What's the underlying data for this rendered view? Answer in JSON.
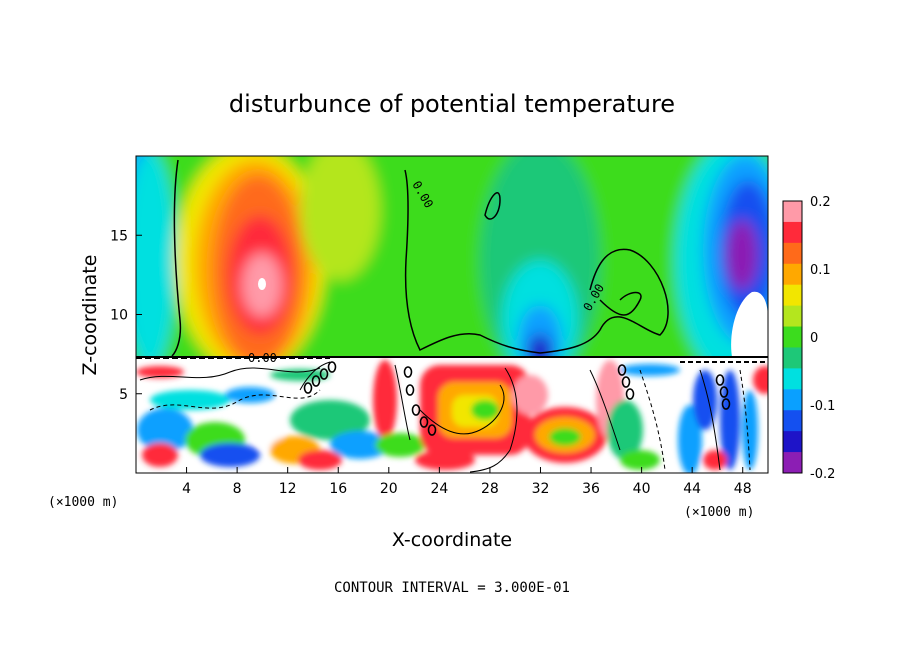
{
  "chart_data": {
    "type": "heatmap",
    "title": "disturbunce of potential temperature",
    "xlabel": "X-coordinate",
    "ylabel": "Z-coordinate",
    "x_unit": "(×1000 m)",
    "x_unit_right": "(×1000 m)",
    "xlim": [
      0,
      50
    ],
    "ylim": [
      0,
      20
    ],
    "x_ticks": [
      4,
      8,
      12,
      16,
      20,
      24,
      28,
      32,
      36,
      40,
      44,
      48
    ],
    "y_ticks": [
      5,
      10,
      15
    ],
    "colorbar": {
      "range": [
        -0.2,
        0.2
      ],
      "ticks": [
        "0.2",
        "0.1",
        "0",
        "-0.1",
        "-0.2"
      ],
      "colors": [
        "#ff9aa8",
        "#ff2a3a",
        "#ff6a1a",
        "#ffa800",
        "#f2e600",
        "#b4e61e",
        "#3cdc1e",
        "#1ec878",
        "#00e0e0",
        "#0aa0ff",
        "#1450f0",
        "#1e14c8",
        "#8c1eb4"
      ]
    },
    "contour_labels": [
      "0.00",
      "0.00",
      "0.00",
      "0.00",
      "0.00"
    ],
    "footer": "CONTOUR INTERVAL = 3.000E-01",
    "blobs_upper": [
      {
        "x": 10,
        "z": 13,
        "value": 0.2
      },
      {
        "x": 10,
        "z": 11,
        "value": 0.15
      },
      {
        "x": 32,
        "z": 8.5,
        "value": -0.2
      },
      {
        "x": 47,
        "z": 12.5,
        "value": -0.2
      },
      {
        "x": 1,
        "z": 13,
        "value": -0.08
      }
    ]
  }
}
